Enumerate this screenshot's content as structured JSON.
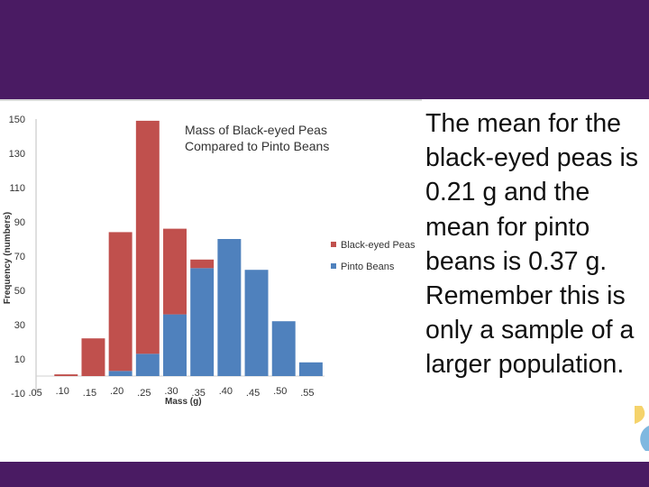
{
  "slide": {
    "body_text": "The mean for the black-eyed peas is 0.21 g and the mean for pinto beans is 0.37 g. Remember this is only a sample of a larger population.",
    "colors": {
      "header": "#4a1b63",
      "black_eyed": "#c0504d",
      "pinto": "#4f81bd"
    }
  },
  "chart_data": {
    "type": "bar",
    "title_lines": [
      "Mass of Black-eyed Peas",
      "Compared to Pinto Beans"
    ],
    "xlabel": "Mass (g)",
    "ylabel": "Frequency (numbers)",
    "ylim": [
      -10,
      150
    ],
    "y_ticks": [
      "150",
      "130",
      "110",
      "90",
      "70",
      "50",
      "30",
      "10",
      "-10"
    ],
    "categories": [
      ".05",
      ".10",
      ".15",
      ".20",
      ".25",
      ".30",
      ".35",
      ".40",
      ".45",
      ".50",
      ".55"
    ],
    "series": [
      {
        "name": "Black-eyed Peas",
        "color": "#c0504d",
        "values": [
          0,
          1,
          22,
          81,
          136,
          50,
          5,
          0,
          0,
          0,
          0
        ]
      },
      {
        "name": "Pinto Beans",
        "color": "#4f81bd",
        "values": [
          0,
          0,
          0,
          3,
          13,
          36,
          63,
          80,
          62,
          32,
          8
        ]
      }
    ],
    "legend": [
      "Black-eyed Peas",
      "Pinto Beans"
    ],
    "legend_position": "right"
  }
}
